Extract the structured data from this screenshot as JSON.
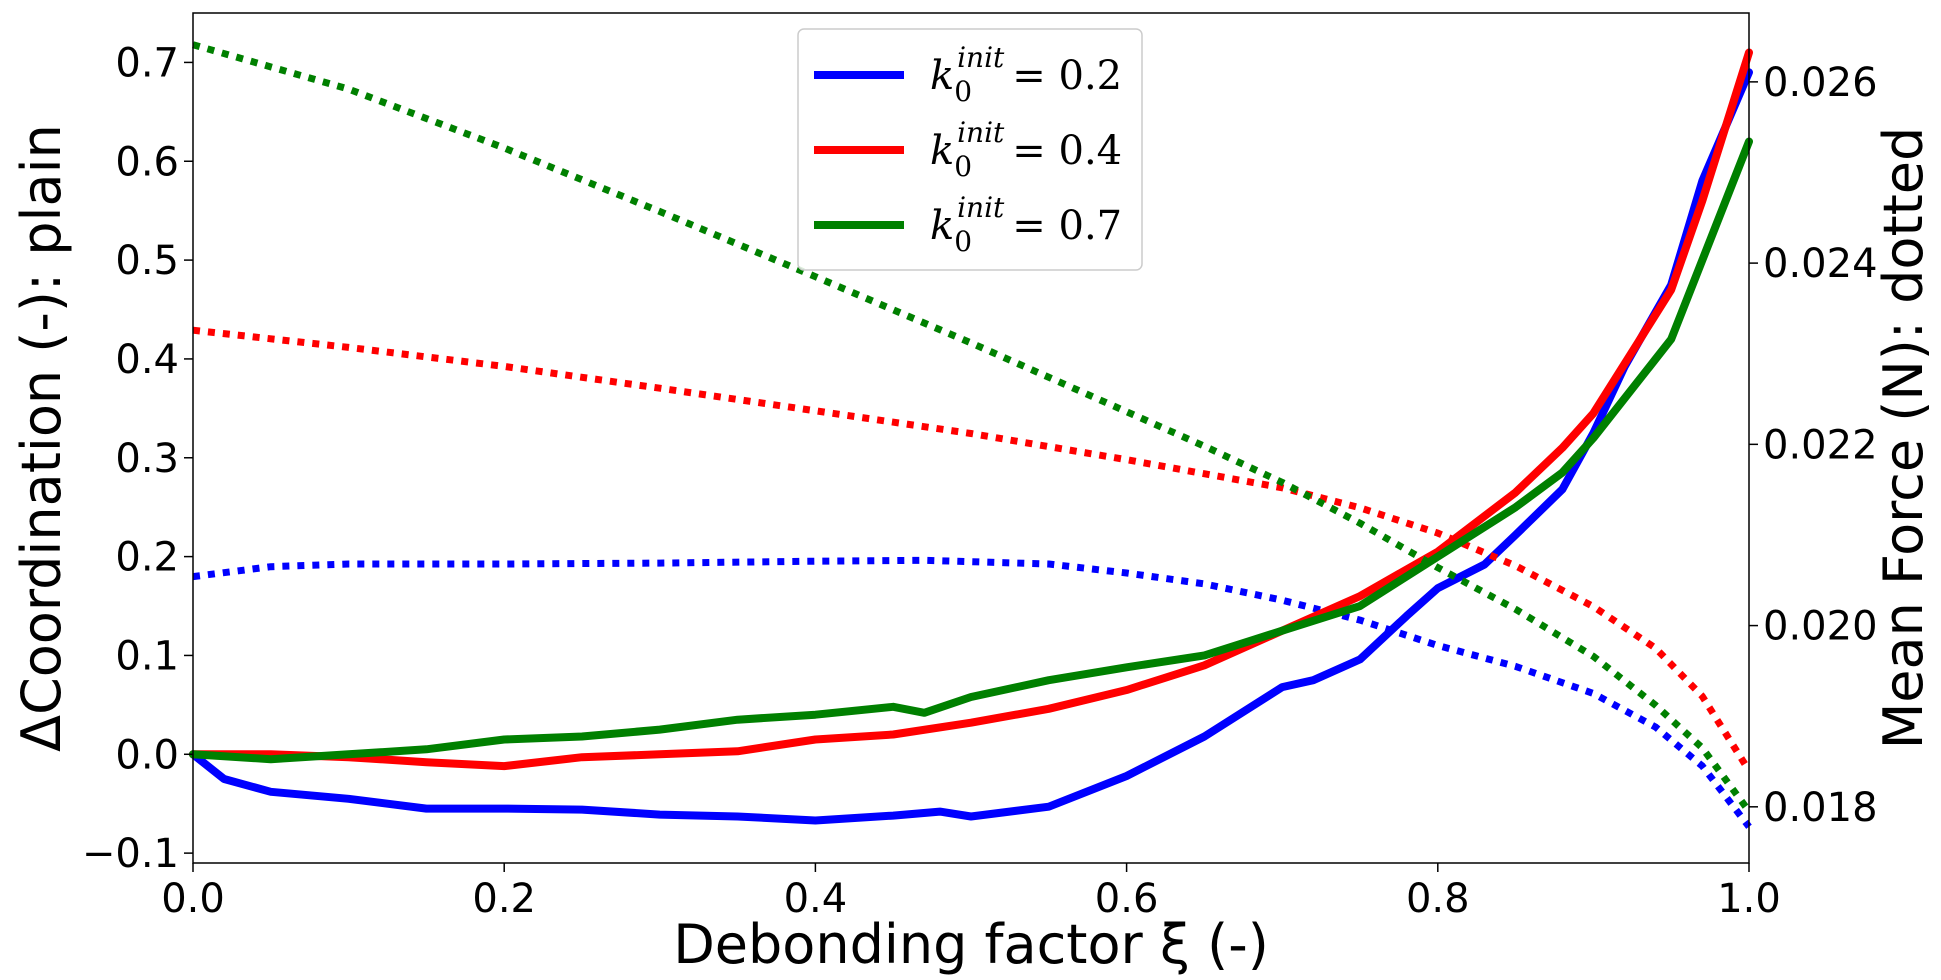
{
  "chart_data": {
    "type": "line",
    "x_axis": {
      "label": "Debonding factor ξ (-)",
      "range": [
        0.0,
        1.0
      ],
      "ticks": [
        0.0,
        0.2,
        0.4,
        0.6,
        0.8,
        1.0
      ],
      "tick_labels": [
        "0.0",
        "0.2",
        "0.4",
        "0.6",
        "0.8",
        "1.0"
      ]
    },
    "y_left": {
      "label": "ΔCoordination (-): plain",
      "range": [
        -0.11,
        0.75
      ],
      "ticks": [
        -0.1,
        0.0,
        0.1,
        0.2,
        0.3,
        0.4,
        0.5,
        0.6,
        0.7
      ],
      "tick_labels": [
        "−0.1",
        "0.0",
        "0.1",
        "0.2",
        "0.3",
        "0.4",
        "0.5",
        "0.6",
        "0.7"
      ]
    },
    "y_right": {
      "label": "Mean Force (N): dotted",
      "range": [
        0.01738,
        0.02676
      ],
      "ticks": [
        0.018,
        0.02,
        0.022,
        0.024,
        0.026
      ],
      "tick_labels": [
        "0.018",
        "0.020",
        "0.022",
        "0.024",
        "0.026"
      ]
    },
    "legend_position": "top-center",
    "series": [
      {
        "name": "k0init=0.2",
        "legend": {
          "k": "k",
          "sub": "0",
          "sup": "init",
          "value": "= 0.2"
        },
        "color": "#0000ff",
        "coordination": {
          "x": [
            0.0,
            0.02,
            0.05,
            0.1,
            0.15,
            0.2,
            0.25,
            0.3,
            0.35,
            0.4,
            0.45,
            0.48,
            0.5,
            0.55,
            0.6,
            0.65,
            0.7,
            0.72,
            0.75,
            0.78,
            0.8,
            0.83,
            0.85,
            0.88,
            0.9,
            0.92,
            0.95,
            0.97,
            1.0
          ],
          "y": [
            0.0,
            -0.025,
            -0.038,
            -0.045,
            -0.055,
            -0.055,
            -0.056,
            -0.061,
            -0.063,
            -0.067,
            -0.062,
            -0.058,
            -0.063,
            -0.053,
            -0.022,
            0.018,
            0.068,
            0.075,
            0.096,
            0.14,
            0.168,
            0.192,
            0.222,
            0.268,
            0.325,
            0.392,
            0.475,
            0.58,
            0.69
          ]
        },
        "force": {
          "x": [
            0.0,
            0.05,
            0.1,
            0.2,
            0.3,
            0.4,
            0.47,
            0.55,
            0.6,
            0.65,
            0.7,
            0.75,
            0.8,
            0.85,
            0.9,
            0.94,
            0.97,
            1.0
          ],
          "y": [
            0.02054,
            0.02065,
            0.02068,
            0.02068,
            0.02069,
            0.02071,
            0.02072,
            0.02068,
            0.02058,
            0.02046,
            0.02028,
            0.02006,
            0.01978,
            0.01955,
            0.01925,
            0.01888,
            0.01845,
            0.01778
          ]
        }
      },
      {
        "name": "k0init=0.4",
        "legend": {
          "k": "k",
          "sub": "0",
          "sup": "init",
          "value": "= 0.4"
        },
        "color": "#ff0000",
        "coordination": {
          "x": [
            0.0,
            0.05,
            0.1,
            0.15,
            0.2,
            0.25,
            0.3,
            0.35,
            0.4,
            0.45,
            0.5,
            0.55,
            0.6,
            0.65,
            0.7,
            0.75,
            0.8,
            0.85,
            0.88,
            0.9,
            0.93,
            0.95,
            0.97,
            1.0
          ],
          "y": [
            0.0,
            0.0,
            -0.003,
            -0.008,
            -0.012,
            -0.003,
            0.0,
            0.003,
            0.015,
            0.02,
            0.032,
            0.046,
            0.065,
            0.09,
            0.125,
            0.16,
            0.205,
            0.265,
            0.31,
            0.345,
            0.42,
            0.47,
            0.56,
            0.71
          ]
        },
        "force": {
          "x": [
            0.0,
            0.1,
            0.2,
            0.3,
            0.4,
            0.5,
            0.6,
            0.7,
            0.75,
            0.8,
            0.85,
            0.9,
            0.94,
            0.97,
            1.0
          ],
          "y": [
            0.02326,
            0.02307,
            0.02286,
            0.02262,
            0.02237,
            0.02212,
            0.02183,
            0.02152,
            0.0213,
            0.02102,
            0.02066,
            0.02021,
            0.01975,
            0.01922,
            0.0184
          ]
        }
      },
      {
        "name": "k0init=0.7",
        "legend": {
          "k": "k",
          "sub": "0",
          "sup": "init",
          "value": "= 0.7"
        },
        "color": "#008000",
        "coordination": {
          "x": [
            0.0,
            0.05,
            0.1,
            0.15,
            0.2,
            0.25,
            0.3,
            0.35,
            0.4,
            0.45,
            0.47,
            0.5,
            0.55,
            0.6,
            0.65,
            0.7,
            0.75,
            0.8,
            0.85,
            0.88,
            0.9,
            0.93,
            0.95,
            1.0
          ],
          "y": [
            0.0,
            -0.005,
            0.0,
            0.005,
            0.015,
            0.018,
            0.025,
            0.035,
            0.04,
            0.048,
            0.042,
            0.058,
            0.075,
            0.088,
            0.1,
            0.125,
            0.15,
            0.2,
            0.25,
            0.285,
            0.32,
            0.38,
            0.42,
            0.62
          ]
        },
        "force": {
          "x": [
            0.0,
            0.1,
            0.2,
            0.3,
            0.4,
            0.5,
            0.6,
            0.65,
            0.7,
            0.75,
            0.8,
            0.85,
            0.9,
            0.94,
            0.97,
            1.0
          ],
          "y": [
            0.02641,
            0.02592,
            0.02527,
            0.02457,
            0.02385,
            0.02312,
            0.02236,
            0.02198,
            0.02158,
            0.02113,
            0.02064,
            0.02018,
            0.01966,
            0.01912,
            0.01865,
            0.01795
          ]
        }
      }
    ]
  }
}
